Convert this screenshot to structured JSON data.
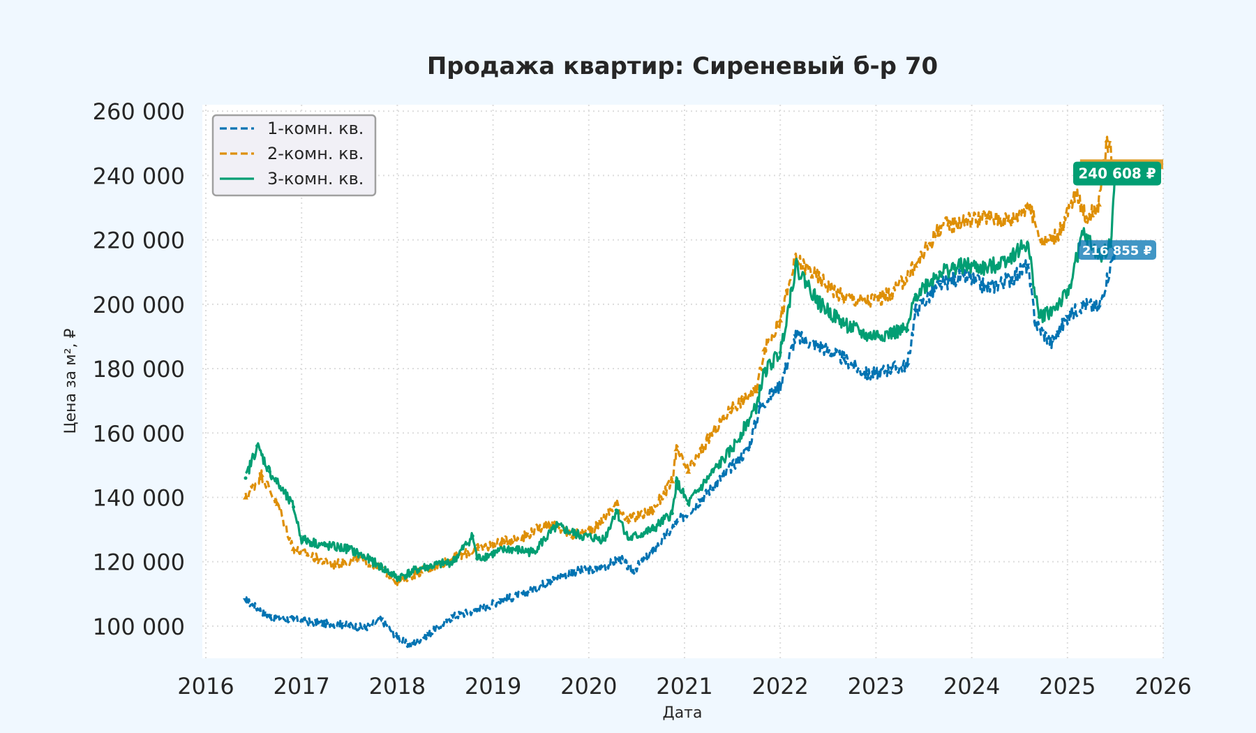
{
  "chart_data": {
    "type": "line",
    "title": "Продажа квартир: Сиреневый б-р 70",
    "xlabel": "Дата",
    "ylabel": "Цена за м², ₽",
    "xlim": [
      2016,
      2026
    ],
    "ylim": [
      90000,
      262000
    ],
    "x_ticks": [
      "2016",
      "2017",
      "2018",
      "2019",
      "2020",
      "2021",
      "2022",
      "2023",
      "2024",
      "2025",
      "2026"
    ],
    "y_ticks": [
      "100 000",
      "120 000",
      "140 000",
      "160 000",
      "180 000",
      "200 000",
      "220 000",
      "240 000",
      "260 000"
    ],
    "grid": true,
    "legend_position": "top-left",
    "series": [
      {
        "name": "1-комн. кв.",
        "color": "#0173b2",
        "line_style": "dashed",
        "marker": "triangle-down",
        "points": [
          [
            "2016-06-01",
            108000
          ],
          [
            "2016-09-01",
            103000
          ],
          [
            "2016-12-01",
            102000
          ],
          [
            "2017-03-01",
            101000
          ],
          [
            "2017-06-01",
            100500
          ],
          [
            "2017-09-01",
            99500
          ],
          [
            "2017-11-01",
            102000
          ],
          [
            "2018-01-01",
            96500
          ],
          [
            "2018-02-15",
            94000
          ],
          [
            "2018-05-01",
            97500
          ],
          [
            "2018-08-01",
            103000
          ],
          [
            "2018-11-01",
            105000
          ],
          [
            "2019-02-01",
            108000
          ],
          [
            "2019-05-01",
            110000
          ],
          [
            "2019-08-01",
            114000
          ],
          [
            "2019-11-01",
            117000
          ],
          [
            "2020-02-01",
            117500
          ],
          [
            "2020-05-01",
            121000
          ],
          [
            "2020-06-15",
            117000
          ],
          [
            "2020-09-01",
            123000
          ],
          [
            "2020-12-01",
            132000
          ],
          [
            "2021-03-01",
            139000
          ],
          [
            "2021-06-01",
            147000
          ],
          [
            "2021-09-01",
            155000
          ],
          [
            "2021-10-15",
            168000
          ],
          [
            "2022-01-01",
            175000
          ],
          [
            "2022-03-01",
            190000
          ],
          [
            "2022-06-01",
            187000
          ],
          [
            "2022-09-01",
            183000
          ],
          [
            "2022-12-01",
            178000
          ],
          [
            "2023-03-01",
            180000
          ],
          [
            "2023-05-01",
            181000
          ],
          [
            "2023-06-01",
            198000
          ],
          [
            "2023-09-01",
            206000
          ],
          [
            "2023-12-01",
            209000
          ],
          [
            "2024-03-01",
            205000
          ],
          [
            "2024-06-01",
            208000
          ],
          [
            "2024-08-01",
            212000
          ],
          [
            "2024-09-01",
            194000
          ],
          [
            "2024-11-01",
            188000
          ],
          [
            "2025-01-01",
            196000
          ],
          [
            "2025-03-01",
            200000
          ],
          [
            "2025-05-01",
            199000
          ],
          [
            "2025-07-01",
            216855
          ]
        ]
      },
      {
        "name": "2-комн. кв.",
        "color": "#de8f05",
        "line_style": "dashed",
        "marker": "triangle-up",
        "points": [
          [
            "2016-06-01",
            140000
          ],
          [
            "2016-08-01",
            147000
          ],
          [
            "2016-10-01",
            138000
          ],
          [
            "2016-12-01",
            124000
          ],
          [
            "2017-03-01",
            121000
          ],
          [
            "2017-05-01",
            119000
          ],
          [
            "2017-08-01",
            121000
          ],
          [
            "2017-11-01",
            118000
          ],
          [
            "2018-01-01",
            114000
          ],
          [
            "2018-04-01",
            117000
          ],
          [
            "2018-08-01",
            121000
          ],
          [
            "2018-11-01",
            124000
          ],
          [
            "2019-02-01",
            126000
          ],
          [
            "2019-05-01",
            128000
          ],
          [
            "2019-08-01",
            132000
          ],
          [
            "2019-11-01",
            128000
          ],
          [
            "2020-02-01",
            131000
          ],
          [
            "2020-04-15",
            138000
          ],
          [
            "2020-06-01",
            133000
          ],
          [
            "2020-09-01",
            136000
          ],
          [
            "2020-11-15",
            145000
          ],
          [
            "2020-12-01",
            155000
          ],
          [
            "2021-01-15",
            148000
          ],
          [
            "2021-04-01",
            158000
          ],
          [
            "2021-07-01",
            168000
          ],
          [
            "2021-10-01",
            173000
          ],
          [
            "2021-11-01",
            186000
          ],
          [
            "2022-01-01",
            195000
          ],
          [
            "2022-03-01",
            214000
          ],
          [
            "2022-06-01",
            208000
          ],
          [
            "2022-09-01",
            202000
          ],
          [
            "2022-12-01",
            201000
          ],
          [
            "2023-03-01",
            203000
          ],
          [
            "2023-06-01",
            212000
          ],
          [
            "2023-09-01",
            224000
          ],
          [
            "2023-12-01",
            226000
          ],
          [
            "2024-03-01",
            227000
          ],
          [
            "2024-06-01",
            226000
          ],
          [
            "2024-08-01",
            231000
          ],
          [
            "2024-10-01",
            219000
          ],
          [
            "2024-12-01",
            222000
          ],
          [
            "2025-02-01",
            234000
          ],
          [
            "2025-03-15",
            227000
          ],
          [
            "2025-05-01",
            231000
          ],
          [
            "2025-06-01",
            251000
          ],
          [
            "2025-07-01",
            243000
          ]
        ]
      },
      {
        "name": "3-комн. кв.",
        "color": "#029e73",
        "line_style": "solid",
        "marker": "point",
        "points": [
          [
            "2016-06-01",
            146000
          ],
          [
            "2016-07-15",
            156000
          ],
          [
            "2016-09-01",
            148000
          ],
          [
            "2016-12-01",
            137000
          ],
          [
            "2017-01-01",
            127000
          ],
          [
            "2017-04-01",
            125000
          ],
          [
            "2017-07-01",
            124000
          ],
          [
            "2017-10-01",
            120000
          ],
          [
            "2018-01-01",
            115000
          ],
          [
            "2018-04-01",
            118000
          ],
          [
            "2018-08-01",
            120000
          ],
          [
            "2018-10-15",
            128000
          ],
          [
            "2018-11-01",
            121000
          ],
          [
            "2019-03-01",
            124000
          ],
          [
            "2019-06-01",
            123000
          ],
          [
            "2019-09-01",
            131000
          ],
          [
            "2019-12-01",
            128000
          ],
          [
            "2020-03-01",
            127000
          ],
          [
            "2020-04-15",
            136000
          ],
          [
            "2020-06-01",
            127000
          ],
          [
            "2020-09-01",
            130000
          ],
          [
            "2020-11-15",
            135000
          ],
          [
            "2020-12-01",
            145000
          ],
          [
            "2021-01-15",
            138000
          ],
          [
            "2021-04-01",
            146000
          ],
          [
            "2021-07-01",
            155000
          ],
          [
            "2021-10-01",
            168000
          ],
          [
            "2021-11-01",
            179000
          ],
          [
            "2022-01-01",
            185000
          ],
          [
            "2022-03-01",
            212000
          ],
          [
            "2022-06-01",
            200000
          ],
          [
            "2022-09-01",
            194000
          ],
          [
            "2022-12-01",
            190000
          ],
          [
            "2023-03-01",
            191000
          ],
          [
            "2023-05-01",
            192000
          ],
          [
            "2023-06-01",
            203000
          ],
          [
            "2023-09-01",
            210000
          ],
          [
            "2023-12-01",
            212000
          ],
          [
            "2024-03-01",
            211000
          ],
          [
            "2024-06-01",
            215000
          ],
          [
            "2024-08-01",
            219000
          ],
          [
            "2024-09-15",
            196000
          ],
          [
            "2024-11-01",
            198000
          ],
          [
            "2025-01-01",
            203000
          ],
          [
            "2025-03-01",
            222000
          ],
          [
            "2025-05-01",
            215000
          ],
          [
            "2025-06-15",
            218000
          ],
          [
            "2025-07-01",
            240608
          ]
        ]
      }
    ],
    "annotations": [
      {
        "series": "3-комн. кв.",
        "date": "2025-07-01",
        "value": 240608,
        "text": "240 608 ₽"
      },
      {
        "series": "1-комн. кв.",
        "date": "2025-07-01",
        "value": 216855,
        "text": "216 855 ₽"
      }
    ],
    "colors": {
      "background": "#f0f8ff",
      "plot_background": "#ffffff",
      "grid": "#dcdcdc",
      "text": "#262626",
      "last_band": "#e0a030"
    }
  }
}
